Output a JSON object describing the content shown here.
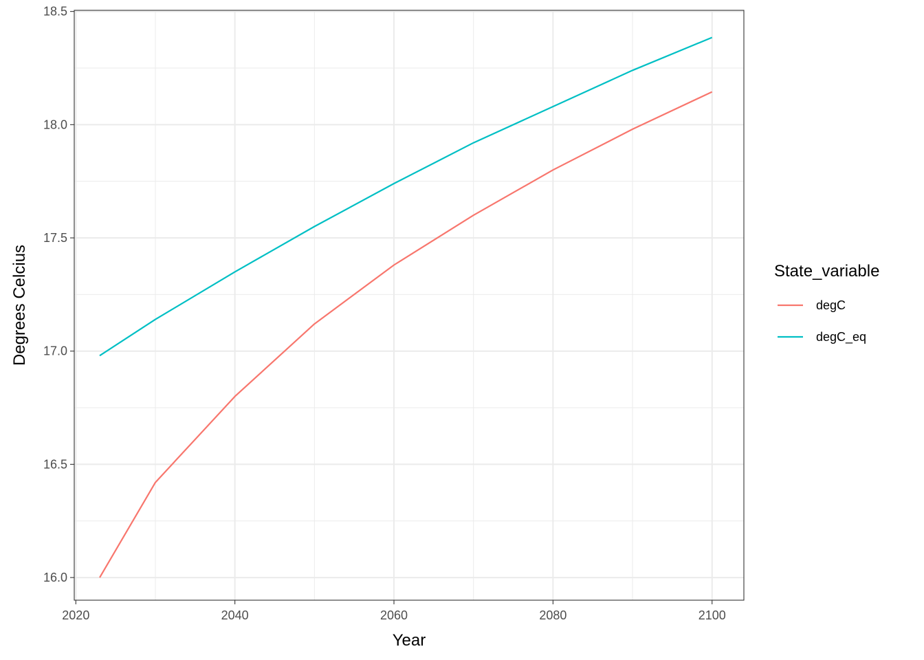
{
  "chart_data": {
    "type": "line",
    "title": "",
    "xlabel": "Year",
    "ylabel": "Degrees Celcius",
    "xlim": [
      2019.8,
      2104.0
    ],
    "ylim": [
      15.9,
      18.505
    ],
    "x_major_ticks": [
      2020,
      2040,
      2060,
      2080,
      2100
    ],
    "x_tick_labels": [
      "2020",
      "2040",
      "2060",
      "2080",
      "2100"
    ],
    "y_major_ticks": [
      16.0,
      16.5,
      17.0,
      17.5,
      18.0,
      18.5
    ],
    "y_tick_labels": [
      "16.0",
      "16.5",
      "17.0",
      "17.5",
      "18.0",
      "18.5"
    ],
    "grid": true,
    "legend": {
      "title": "State_variable",
      "position": "right"
    },
    "x": [
      2023,
      2030,
      2040,
      2050,
      2060,
      2070,
      2080,
      2090,
      2100
    ],
    "series": [
      {
        "name": "degC",
        "color": "#F8766D",
        "values": [
          16.0,
          16.42,
          16.8,
          17.12,
          17.38,
          17.6,
          17.8,
          17.98,
          18.145
        ]
      },
      {
        "name": "degC_eq",
        "color": "#00BFC4",
        "values": [
          16.98,
          17.14,
          17.35,
          17.55,
          17.74,
          17.92,
          18.08,
          18.24,
          18.385
        ]
      }
    ]
  }
}
